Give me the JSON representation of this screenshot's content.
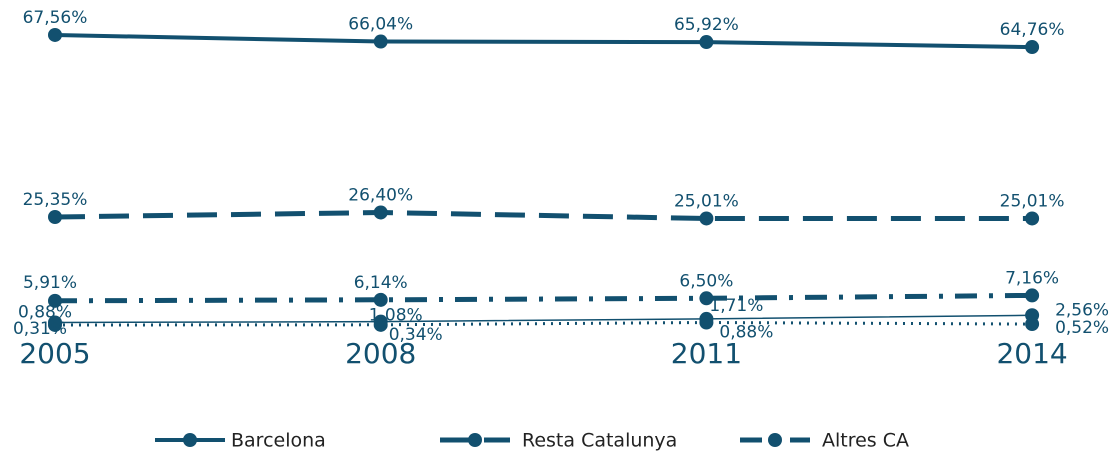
{
  "chart_data": {
    "type": "line",
    "categories": [
      "2005",
      "2008",
      "2011",
      "2014"
    ],
    "series": [
      {
        "name": "Barcelona",
        "color": "#12506f",
        "values": [
          67.56,
          66.04,
          65.92,
          64.76
        ],
        "value_labels": [
          "67,56%",
          "66,04%",
          "65,92%",
          "64,76%"
        ]
      },
      {
        "name": "Resta Catalunya",
        "color": "#12506f",
        "values": [
          25.35,
          26.4,
          25.01,
          25.01
        ],
        "value_labels": [
          "25,35%",
          "26,40%",
          "25,01%",
          "25,01%"
        ]
      },
      {
        "name": "Altres CA",
        "color": "#12506f",
        "values": [
          5.91,
          6.14,
          6.5,
          7.16
        ],
        "value_labels": [
          "5,91%",
          "6,14%",
          "6,50%",
          "7,16%"
        ]
      },
      {
        "color": "#12506f",
        "values": [
          0.88,
          1.08,
          1.71,
          2.56
        ],
        "value_labels": [
          "0,88%",
          "1,08%",
          "1,71%",
          "2,56%"
        ]
      },
      {
        "color": "#12506f",
        "values": [
          0.31,
          0.34,
          0.88,
          0.52
        ],
        "value_labels": [
          "0,31%",
          "0,34%",
          "0,88%",
          "0,52%"
        ]
      }
    ],
    "legend": "bottom"
  }
}
